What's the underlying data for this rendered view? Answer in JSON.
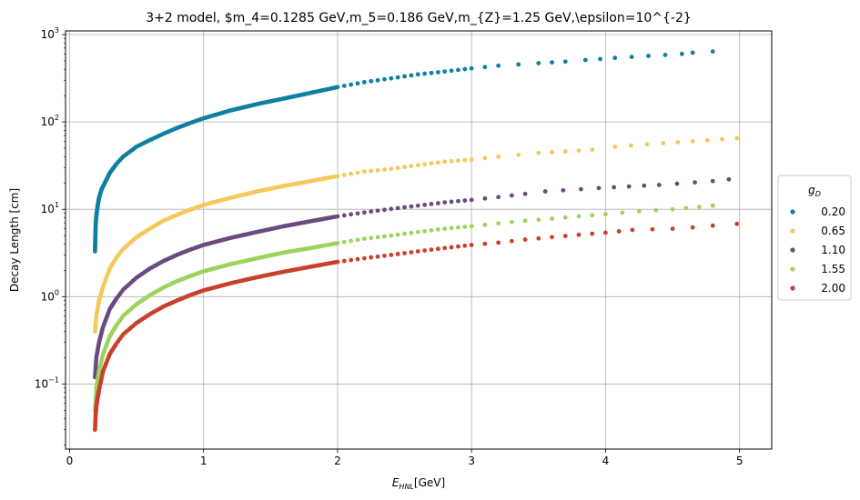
{
  "chart_data": {
    "type": "scatter",
    "title": "3+2 model, $m_4=0.1285 GeV,m_5=0.186 GeV,m_{Z}=1.25 GeV,\\epsilon=10^{-2}",
    "xlabel_main": "E",
    "xlabel_sub": "HNL",
    "xlabel_unit": "[GeV]",
    "ylabel": "Decay Length [cm]",
    "xlim": [
      -0.03,
      5.24
    ],
    "ylim": [
      0.018,
      1100
    ],
    "yscale": "log",
    "grid": true,
    "x_ticks": [
      {
        "value": 0,
        "label": "0"
      },
      {
        "value": 1,
        "label": "1"
      },
      {
        "value": 2,
        "label": "2"
      },
      {
        "value": 3,
        "label": "3"
      },
      {
        "value": 4,
        "label": "4"
      },
      {
        "value": 5,
        "label": "5"
      }
    ],
    "y_ticks": [
      {
        "value": 0.1,
        "base": "10",
        "exp": "−1"
      },
      {
        "value": 1,
        "base": "10",
        "exp": "0"
      },
      {
        "value": 10,
        "base": "10",
        "exp": "1"
      },
      {
        "value": 100,
        "base": "10",
        "exp": "2"
      },
      {
        "value": 1000,
        "base": "10",
        "exp": "3"
      }
    ],
    "legend": {
      "title_main": "g",
      "title_sub": "D",
      "placement": "center-right outside"
    },
    "series": [
      {
        "name": "0.20",
        "color": "#0f7fa0",
        "points": [
          [
            0.19,
            3.3
          ],
          [
            0.192,
            4.5
          ],
          [
            0.195,
            6.5
          ],
          [
            0.2,
            8.5
          ],
          [
            0.21,
            11
          ],
          [
            0.22,
            13.5
          ],
          [
            0.24,
            17
          ],
          [
            0.27,
            21
          ],
          [
            0.3,
            26
          ],
          [
            0.35,
            33
          ],
          [
            0.4,
            40
          ],
          [
            0.5,
            52
          ],
          [
            0.6,
            62
          ],
          [
            0.7,
            73
          ],
          [
            0.8,
            85
          ],
          [
            0.9,
            97
          ],
          [
            1.0,
            110
          ],
          [
            1.2,
            135
          ],
          [
            1.4,
            160
          ],
          [
            1.6,
            185
          ],
          [
            1.8,
            215
          ],
          [
            2.0,
            250
          ],
          [
            2.2,
            285
          ],
          [
            2.4,
            315
          ],
          [
            2.6,
            350
          ],
          [
            2.75,
            370
          ],
          [
            3.0,
            410
          ],
          [
            3.2,
            440
          ],
          [
            3.5,
            470
          ],
          [
            3.7,
            490
          ],
          [
            3.85,
            510
          ],
          [
            4.07,
            540
          ],
          [
            4.57,
            600
          ],
          [
            4.65,
            620
          ],
          [
            4.8,
            640
          ]
        ]
      },
      {
        "name": "0.65",
        "color": "#f6c75c",
        "points": [
          [
            0.19,
            0.4
          ],
          [
            0.2,
            0.6
          ],
          [
            0.22,
            0.9
          ],
          [
            0.25,
            1.3
          ],
          [
            0.3,
            2.1
          ],
          [
            0.35,
            2.8
          ],
          [
            0.4,
            3.5
          ],
          [
            0.5,
            4.8
          ],
          [
            0.6,
            6.0
          ],
          [
            0.7,
            7.4
          ],
          [
            0.8,
            8.6
          ],
          [
            0.9,
            9.9
          ],
          [
            1.0,
            11.2
          ],
          [
            1.2,
            13.5
          ],
          [
            1.4,
            16
          ],
          [
            1.6,
            18.5
          ],
          [
            1.8,
            21
          ],
          [
            2.0,
            24
          ],
          [
            2.2,
            27
          ],
          [
            2.4,
            29
          ],
          [
            2.6,
            32
          ],
          [
            2.8,
            35
          ],
          [
            3.0,
            37
          ],
          [
            3.2,
            40
          ],
          [
            3.5,
            44
          ],
          [
            3.7,
            46
          ],
          [
            3.9,
            48
          ],
          [
            4.07,
            52
          ],
          [
            4.43,
            57
          ],
          [
            4.65,
            60
          ],
          [
            4.98,
            65
          ]
        ]
      },
      {
        "name": "1.10",
        "color": "#6b4a7f",
        "points": [
          [
            0.19,
            0.12
          ],
          [
            0.2,
            0.2
          ],
          [
            0.22,
            0.3
          ],
          [
            0.25,
            0.45
          ],
          [
            0.3,
            0.72
          ],
          [
            0.35,
            0.95
          ],
          [
            0.4,
            1.2
          ],
          [
            0.5,
            1.65
          ],
          [
            0.6,
            2.1
          ],
          [
            0.7,
            2.55
          ],
          [
            0.8,
            3.0
          ],
          [
            0.9,
            3.45
          ],
          [
            1.0,
            3.9
          ],
          [
            1.2,
            4.7
          ],
          [
            1.4,
            5.5
          ],
          [
            1.6,
            6.4
          ],
          [
            1.8,
            7.3
          ],
          [
            2.0,
            8.3
          ],
          [
            2.2,
            9.2
          ],
          [
            2.4,
            10.1
          ],
          [
            2.6,
            11.0
          ],
          [
            2.8,
            12.0
          ],
          [
            3.0,
            12.8
          ],
          [
            3.2,
            13.8
          ],
          [
            3.4,
            15
          ],
          [
            3.55,
            16
          ],
          [
            3.95,
            17.5
          ],
          [
            4.4,
            19
          ],
          [
            4.8,
            21
          ],
          [
            4.92,
            22
          ]
        ]
      },
      {
        "name": "1.55",
        "color": "#9cd35c",
        "points": [
          [
            0.19,
            0.05
          ],
          [
            0.2,
            0.09
          ],
          [
            0.22,
            0.14
          ],
          [
            0.25,
            0.22
          ],
          [
            0.3,
            0.35
          ],
          [
            0.35,
            0.47
          ],
          [
            0.4,
            0.6
          ],
          [
            0.5,
            0.82
          ],
          [
            0.6,
            1.04
          ],
          [
            0.7,
            1.27
          ],
          [
            0.8,
            1.5
          ],
          [
            0.9,
            1.72
          ],
          [
            1.0,
            1.95
          ],
          [
            1.2,
            2.35
          ],
          [
            1.4,
            2.75
          ],
          [
            1.6,
            3.2
          ],
          [
            1.8,
            3.6
          ],
          [
            2.0,
            4.1
          ],
          [
            2.2,
            4.6
          ],
          [
            2.4,
            5.0
          ],
          [
            2.6,
            5.5
          ],
          [
            2.8,
            6.0
          ],
          [
            3.0,
            6.4
          ],
          [
            3.2,
            6.9
          ],
          [
            3.4,
            7.4
          ],
          [
            3.6,
            7.8
          ],
          [
            3.8,
            8.3
          ],
          [
            4.0,
            8.8
          ],
          [
            4.25,
            9.5
          ],
          [
            4.5,
            10
          ],
          [
            4.6,
            10.3
          ],
          [
            4.8,
            11
          ]
        ]
      },
      {
        "name": "2.00",
        "color": "#c8402b",
        "points": [
          [
            0.19,
            0.03
          ],
          [
            0.195,
            0.045
          ],
          [
            0.2,
            0.055
          ],
          [
            0.21,
            0.07
          ],
          [
            0.22,
            0.085
          ],
          [
            0.25,
            0.14
          ],
          [
            0.3,
            0.22
          ],
          [
            0.35,
            0.29
          ],
          [
            0.4,
            0.37
          ],
          [
            0.5,
            0.5
          ],
          [
            0.6,
            0.63
          ],
          [
            0.7,
            0.77
          ],
          [
            0.8,
            0.9
          ],
          [
            0.9,
            1.04
          ],
          [
            1.0,
            1.18
          ],
          [
            1.2,
            1.42
          ],
          [
            1.4,
            1.67
          ],
          [
            1.6,
            1.93
          ],
          [
            1.8,
            2.2
          ],
          [
            2.0,
            2.5
          ],
          [
            2.2,
            2.75
          ],
          [
            2.4,
            3.0
          ],
          [
            2.6,
            3.3
          ],
          [
            2.8,
            3.6
          ],
          [
            3.0,
            3.9
          ],
          [
            3.2,
            4.15
          ],
          [
            3.4,
            4.5
          ],
          [
            3.6,
            4.8
          ],
          [
            3.8,
            5.1
          ],
          [
            4.0,
            5.4
          ],
          [
            4.2,
            5.8
          ],
          [
            4.5,
            6.0
          ],
          [
            4.65,
            6.2
          ],
          [
            4.8,
            6.5
          ],
          [
            4.98,
            6.8
          ]
        ]
      }
    ]
  }
}
